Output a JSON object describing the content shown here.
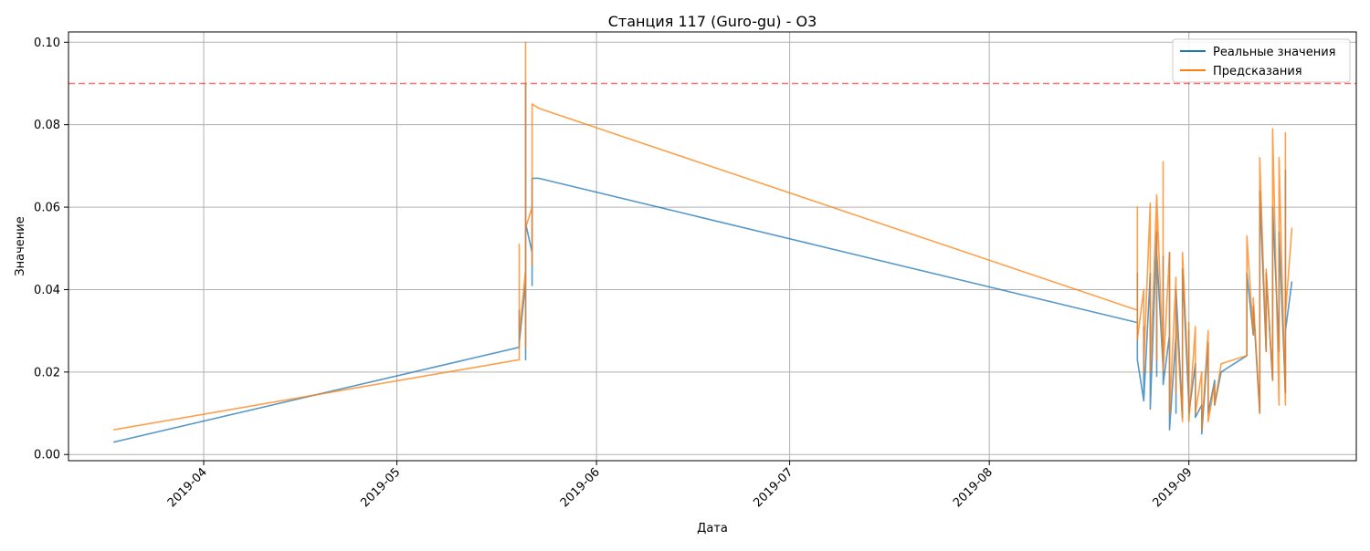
{
  "chart_data": {
    "type": "line",
    "title": "Станция 117 (Guro-gu) - O3",
    "xlabel": "Дата",
    "ylabel": "Значение",
    "xlim": [
      "2019-03-11",
      "2019-09-27"
    ],
    "ylim": [
      -0.0015,
      0.1025
    ],
    "x_ticks": [
      {
        "date": "2019-04-01",
        "label": "2019-04"
      },
      {
        "date": "2019-05-01",
        "label": "2019-05"
      },
      {
        "date": "2019-06-01",
        "label": "2019-06"
      },
      {
        "date": "2019-07-01",
        "label": "2019-07"
      },
      {
        "date": "2019-08-01",
        "label": "2019-08"
      },
      {
        "date": "2019-09-01",
        "label": "2019-09"
      }
    ],
    "y_ticks": [
      {
        "value": 0.0,
        "label": "0.00"
      },
      {
        "value": 0.02,
        "label": "0.02"
      },
      {
        "value": 0.04,
        "label": "0.04"
      },
      {
        "value": 0.06,
        "label": "0.06"
      },
      {
        "value": 0.08,
        "label": "0.08"
      },
      {
        "value": 0.1,
        "label": "0.10"
      }
    ],
    "grid": true,
    "legend_position": "top-right",
    "threshold": {
      "value": 0.09,
      "color": "#ff0000",
      "style": "dashed"
    },
    "series": [
      {
        "name": "Реальные значения",
        "color": "#1f77b4",
        "x": [
          "2019-03-18",
          "2019-05-20",
          "2019-05-20",
          "2019-05-20",
          "2019-05-21",
          "2019-05-21",
          "2019-05-21",
          "2019-05-21",
          "2019-05-22",
          "2019-05-22",
          "2019-05-22",
          "2019-05-22",
          "2019-05-22",
          "2019-05-22",
          "2019-05-23",
          "2019-05-23",
          "2019-08-24",
          "2019-08-24",
          "2019-08-24",
          "2019-08-25",
          "2019-08-25",
          "2019-08-25",
          "2019-08-26",
          "2019-08-26",
          "2019-08-27",
          "2019-08-27",
          "2019-08-27",
          "2019-08-28",
          "2019-08-28",
          "2019-08-28",
          "2019-08-29",
          "2019-08-29",
          "2019-08-29",
          "2019-08-30",
          "2019-08-30",
          "2019-08-30",
          "2019-08-31",
          "2019-08-31",
          "2019-09-01",
          "2019-09-01",
          "2019-09-01",
          "2019-09-02",
          "2019-09-02",
          "2019-09-03",
          "2019-09-03",
          "2019-09-04",
          "2019-09-04",
          "2019-09-05",
          "2019-09-05",
          "2019-09-06",
          "2019-09-10",
          "2019-09-10",
          "2019-09-11",
          "2019-09-11",
          "2019-09-12",
          "2019-09-12",
          "2019-09-13",
          "2019-09-13",
          "2019-09-14",
          "2019-09-14",
          "2019-09-15",
          "2019-09-15",
          "2019-09-16",
          "2019-09-16",
          "2019-09-16",
          "2019-09-17"
        ],
        "y": [
          0.003,
          0.026,
          0.035,
          0.027,
          0.042,
          0.023,
          0.09,
          0.056,
          0.049,
          0.067,
          0.041,
          0.063,
          0.047,
          0.067,
          0.067,
          0.067,
          0.032,
          0.044,
          0.023,
          0.013,
          0.031,
          0.013,
          0.044,
          0.011,
          0.054,
          0.019,
          0.049,
          0.021,
          0.048,
          0.017,
          0.029,
          0.049,
          0.006,
          0.029,
          0.01,
          0.04,
          0.009,
          0.045,
          0.012,
          0.03,
          0.01,
          0.022,
          0.009,
          0.012,
          0.005,
          0.027,
          0.01,
          0.018,
          0.012,
          0.02,
          0.024,
          0.044,
          0.029,
          0.036,
          0.01,
          0.064,
          0.025,
          0.044,
          0.018,
          0.06,
          0.025,
          0.054,
          0.015,
          0.069,
          0.03,
          0.042
        ]
      },
      {
        "name": "Предсказания",
        "color": "#ff7f0e",
        "x": [
          "2019-03-18",
          "2019-05-20",
          "2019-05-20",
          "2019-05-20",
          "2019-05-21",
          "2019-05-21",
          "2019-05-21",
          "2019-05-21",
          "2019-05-22",
          "2019-05-22",
          "2019-05-22",
          "2019-05-22",
          "2019-05-22",
          "2019-05-22",
          "2019-05-23",
          "2019-05-23",
          "2019-08-24",
          "2019-08-24",
          "2019-08-24",
          "2019-08-25",
          "2019-08-25",
          "2019-08-25",
          "2019-08-26",
          "2019-08-26",
          "2019-08-27",
          "2019-08-27",
          "2019-08-27",
          "2019-08-28",
          "2019-08-28",
          "2019-08-28",
          "2019-08-29",
          "2019-08-29",
          "2019-08-29",
          "2019-08-30",
          "2019-08-30",
          "2019-08-30",
          "2019-08-31",
          "2019-08-31",
          "2019-09-01",
          "2019-09-01",
          "2019-09-01",
          "2019-09-02",
          "2019-09-02",
          "2019-09-03",
          "2019-09-03",
          "2019-09-04",
          "2019-09-04",
          "2019-09-05",
          "2019-09-05",
          "2019-09-06",
          "2019-09-10",
          "2019-09-10",
          "2019-09-11",
          "2019-09-11",
          "2019-09-12",
          "2019-09-12",
          "2019-09-13",
          "2019-09-13",
          "2019-09-14",
          "2019-09-14",
          "2019-09-15",
          "2019-09-15",
          "2019-09-16",
          "2019-09-16",
          "2019-09-16",
          "2019-09-17"
        ],
        "y": [
          0.006,
          0.023,
          0.051,
          0.029,
          0.045,
          0.026,
          0.1,
          0.055,
          0.06,
          0.065,
          0.046,
          0.067,
          0.052,
          0.085,
          0.084,
          0.084,
          0.035,
          0.06,
          0.028,
          0.04,
          0.02,
          0.022,
          0.061,
          0.02,
          0.063,
          0.023,
          0.063,
          0.022,
          0.071,
          0.02,
          0.049,
          0.032,
          0.01,
          0.043,
          0.015,
          0.035,
          0.008,
          0.049,
          0.015,
          0.032,
          0.008,
          0.031,
          0.01,
          0.02,
          0.006,
          0.03,
          0.008,
          0.017,
          0.012,
          0.022,
          0.024,
          0.053,
          0.029,
          0.038,
          0.01,
          0.072,
          0.025,
          0.045,
          0.018,
          0.079,
          0.012,
          0.072,
          0.012,
          0.078,
          0.034,
          0.055
        ]
      }
    ]
  }
}
